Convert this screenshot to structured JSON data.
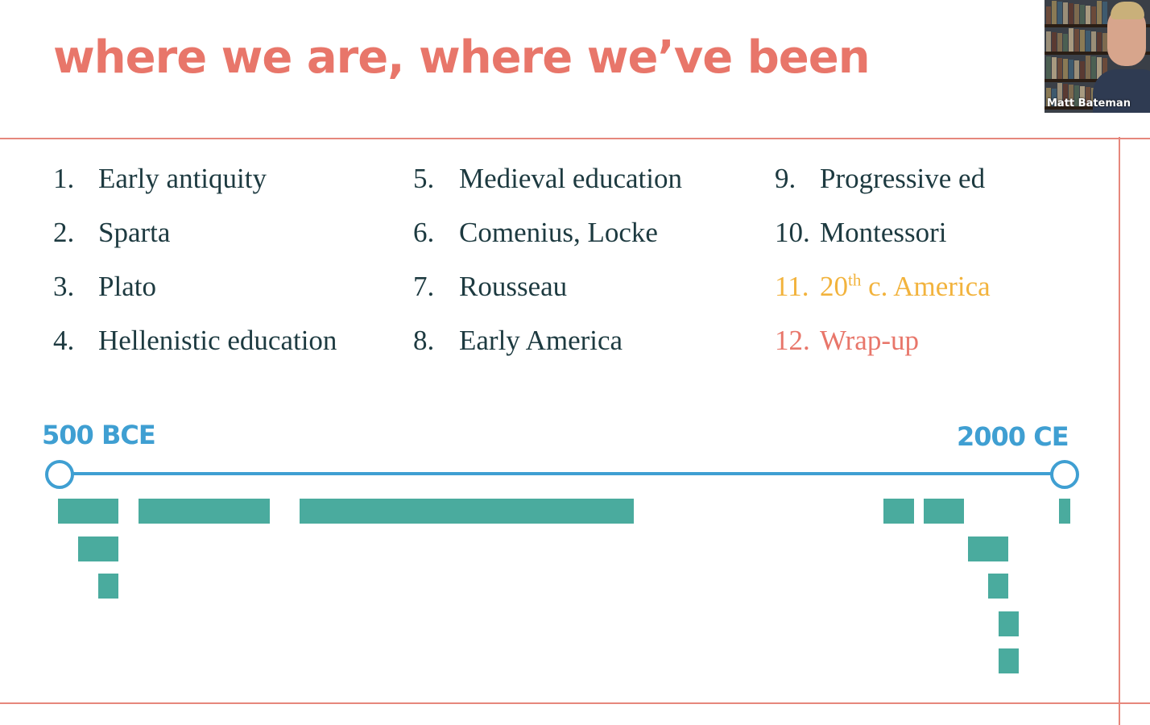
{
  "slide": {
    "title": "where we are, where we’ve been"
  },
  "agenda": {
    "columns": [
      [
        {
          "num": "1.",
          "label": "Early antiquity",
          "status": "past"
        },
        {
          "num": "2.",
          "label": "Sparta",
          "status": "past"
        },
        {
          "num": "3.",
          "label": "Plato",
          "status": "past"
        },
        {
          "num": "4.",
          "label": "Hellenistic education",
          "status": "past"
        }
      ],
      [
        {
          "num": "5.",
          "label": "Medieval education",
          "status": "past"
        },
        {
          "num": "6.",
          "label": "Comenius, Locke",
          "status": "past"
        },
        {
          "num": "7.",
          "label": "Rousseau",
          "status": "past"
        },
        {
          "num": "8.",
          "label": "Early America",
          "status": "past"
        }
      ],
      [
        {
          "num": "9.",
          "label": "Progressive ed",
          "status": "past"
        },
        {
          "num": "10.",
          "label": "Montessori",
          "status": "past"
        },
        {
          "num": "11.",
          "label_pre": "20",
          "label_sup": "th",
          "label_post": " c. America",
          "status": "current"
        },
        {
          "num": "12.",
          "label": "Wrap-up",
          "status": "upcoming"
        }
      ]
    ]
  },
  "timeline": {
    "start_label": "500 BCE",
    "end_label": "2000 CE",
    "start_year": -500,
    "end_year": 2000,
    "periods": [
      {
        "name": "early-antiquity",
        "start": -500,
        "end": -350,
        "row": 0
      },
      {
        "name": "sparta",
        "start": -450,
        "end": -350,
        "row": 1
      },
      {
        "name": "plato",
        "start": -400,
        "end": -350,
        "row": 2
      },
      {
        "name": "hellenistic-education",
        "start": -300,
        "end": 25,
        "row": 0
      },
      {
        "name": "medieval-education",
        "start": 100,
        "end": 930,
        "row": 0
      },
      {
        "name": "comenius-locke",
        "start": 1550,
        "end": 1625,
        "row": 0
      },
      {
        "name": "rousseau",
        "start": 1650,
        "end": 1750,
        "row": 0
      },
      {
        "name": "early-america",
        "start": 1760,
        "end": 1860,
        "row": 1
      },
      {
        "name": "progressive-ed",
        "start": 1810,
        "end": 1860,
        "row": 2
      },
      {
        "name": "montessori",
        "start": 1835,
        "end": 1885,
        "row": 3
      },
      {
        "name": "20th-c-america",
        "start": 1835,
        "end": 1885,
        "row": 4
      },
      {
        "name": "wrap-up",
        "start": 1985,
        "end": 2010,
        "row": 0
      }
    ]
  },
  "participant": {
    "name": "Matt Bateman"
  },
  "colors": {
    "title": "#e8766a",
    "rule": "#e6877c",
    "text": "#1d3a40",
    "current": "#f2b33d",
    "upcoming": "#e8766a",
    "timeline_blue": "#3f9fd2",
    "bar_teal": "#4aab9e"
  }
}
